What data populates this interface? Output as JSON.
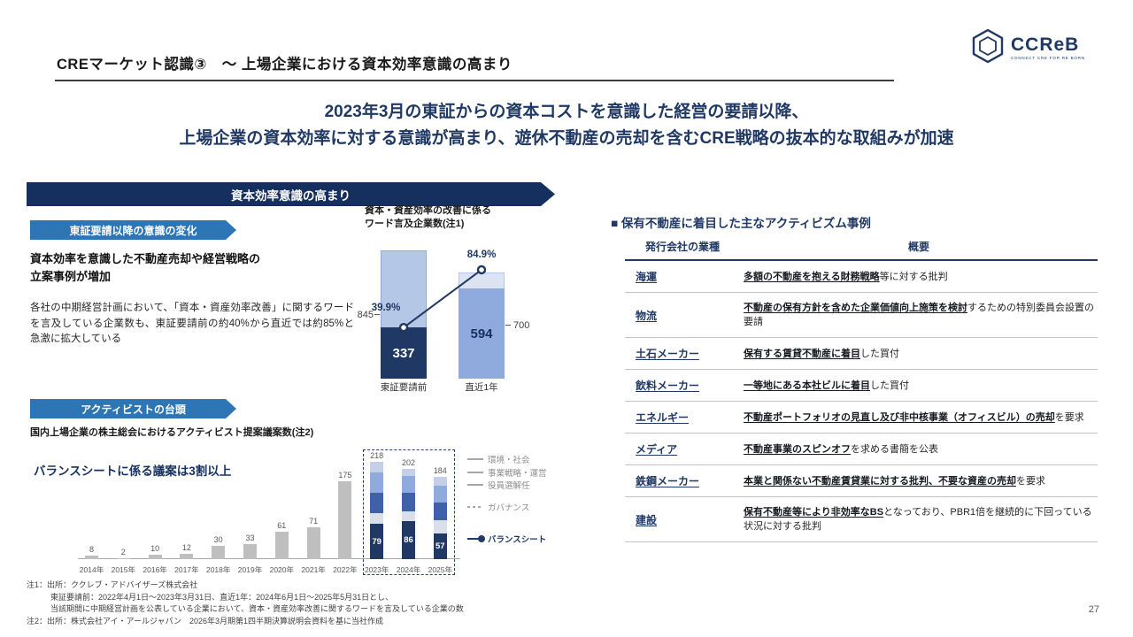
{
  "header": {
    "title": "CREマーケット認識③　～ 上場企業における資本効率意識の高まり"
  },
  "logo": {
    "name": "CCReB",
    "tagline": "CONNECT CRE FOR RE BORN"
  },
  "lead": {
    "line1": "2023年3月の東証からの資本コストを意識した経営の要請以降、",
    "line2": "上場企業の資本効率に対する意識が高まり、遊休不動産の売却を含むCRE戦略の抜本的な取組みが加速"
  },
  "left_panel": {
    "main_banner": "資本効率意識の高まり",
    "change_section": {
      "banner": "東証要請以降の意識の変化",
      "headline": "資本効率を意識した不動産売却や経営戦略の\n立案事例が増加",
      "body": "各社の中期経営計画において、「資本・資産効率改善」に関するワードを言及している企業数も、東証要請前の約40%から直近では約85%と急激に拡大している"
    },
    "activist_section": {
      "banner": "アクティビストの台頭",
      "headline": "バランスシートに係る議案は3割以上"
    }
  },
  "chart_data": [
    {
      "type": "bar",
      "title": "資本・資産効率の改善に係る\nワード言及企業数(注1)",
      "categories": [
        "東証要請前",
        "直近1年"
      ],
      "totals": [
        845,
        700
      ],
      "mention_counts": [
        337,
        594
      ],
      "percent_labels": [
        "39.9%",
        "84.9%"
      ],
      "note": "line series shows share of companies mentioning capital/asset-efficiency words: 39.9% -> 84.9%"
    },
    {
      "type": "stacked-bar",
      "title": "国内上場企業の株主総会におけるアクティビスト提案議案数(注2)",
      "categories": [
        "2014年",
        "2015年",
        "2016年",
        "2017年",
        "2018年",
        "2019年",
        "2020年",
        "2021年",
        "2022年",
        "2023年",
        "2024年",
        "2025年"
      ],
      "totals": [
        8,
        2,
        10,
        12,
        30,
        33,
        61,
        71,
        175,
        218,
        202,
        184
      ],
      "balance_sheet_values": [
        79,
        86,
        57
      ],
      "stacked_from_index": 9,
      "bar_color_default": "#bfbfbf",
      "segments_bottom_to_top": [
        {
          "name": "バランスシート",
          "color": "#1f3864",
          "values": [
            79,
            86,
            57
          ]
        },
        {
          "name": "ガバナンス",
          "color": "#d9dfeb",
          "values": [
            25,
            22,
            30
          ]
        },
        {
          "name": "役員選解任",
          "color": "#3f61a7",
          "values": [
            45,
            40,
            40
          ]
        },
        {
          "name": "事業戦略・運営",
          "color": "#8faadc",
          "values": [
            45,
            38,
            38
          ]
        },
        {
          "name": "環境・社会",
          "color": "#c3d0e8",
          "values": [
            24,
            16,
            19
          ]
        }
      ],
      "legend": [
        {
          "label": "環境・社会",
          "color": "#c3d0e8"
        },
        {
          "label": "事業戦略・運営",
          "color": "#8faadc"
        },
        {
          "label": "役員選解任",
          "color": "#3f61a7"
        },
        {
          "label": "ガバナンス",
          "color": "#d9dfeb"
        },
        {
          "label": "バランスシート",
          "color": "#1f3864"
        }
      ]
    }
  ],
  "right_panel": {
    "heading": "■ 保有不動産に着目した主なアクティビズム事例",
    "table": {
      "headers": [
        "発行会社の業種",
        "概要"
      ],
      "rows": [
        {
          "industry": "海運",
          "desc": [
            {
              "t": "多額の不動産を抱える財務戦略",
              "em": true
            },
            {
              "t": "等に対する批判",
              "em": false
            }
          ]
        },
        {
          "industry": "物流",
          "desc": [
            {
              "t": "不動産の保有方針を含めた企業価値向上施策を検討",
              "em": true
            },
            {
              "t": "するための特別委員会設置の要請",
              "em": false
            }
          ]
        },
        {
          "industry": "土石メーカー",
          "desc": [
            {
              "t": "保有する賃貸不動産に着目",
              "em": true
            },
            {
              "t": "した買付",
              "em": false
            }
          ]
        },
        {
          "industry": "飲料メーカー",
          "desc": [
            {
              "t": "一等地にある本社ビルに着目",
              "em": true
            },
            {
              "t": "した買付",
              "em": false
            }
          ]
        },
        {
          "industry": "エネルギー",
          "desc": [
            {
              "t": "不動産ポートフォリオの見直し及び非中核事業（オフィスビル）の売却",
              "em": true
            },
            {
              "t": "を要求",
              "em": false
            }
          ]
        },
        {
          "industry": "メディア",
          "desc": [
            {
              "t": "不動産事業のスピンオフ",
              "em": true
            },
            {
              "t": "を求める書簡を公表",
              "em": false
            }
          ]
        },
        {
          "industry": "鉄鋼メーカー",
          "desc": [
            {
              "t": "本業と関係ない不動産賃貸業に対する批判、不要な資産の売却",
              "em": true
            },
            {
              "t": "を要求",
              "em": false
            }
          ]
        },
        {
          "industry": "建設",
          "desc": [
            {
              "t": "保有不動産等により非効率なBS",
              "em": true
            },
            {
              "t": "となっており、PBR1倍を継続的に下回っている状況に対する批判",
              "em": false
            }
          ]
        }
      ]
    }
  },
  "footnotes": [
    "注1：出所：ククレブ・アドバイザーズ株式会社",
    "　　　東証要請前：2022年4月1日～2023年3月31日、直近1年：2024年6月1日～2025年5月31日とし、",
    "　　　当該期間に中期経営計画を公表している企業において、資本・資産効率改善に関するワードを言及している企業の数",
    "注2：出所：株式会社アイ・アールジャパン　2026年3月期第1四半期決算説明会資料を基に当社作成"
  ],
  "page_number": "27",
  "colors": {
    "navy": "#1f3864",
    "banner_navy": "#15305e",
    "banner_blue": "#2e75b6",
    "bar_light_blue": "#b4c7e7",
    "bar_pale_blue": "#dce4f3",
    "bar_medium_blue": "#8faadc",
    "bar_gray": "#bfbfbf"
  }
}
